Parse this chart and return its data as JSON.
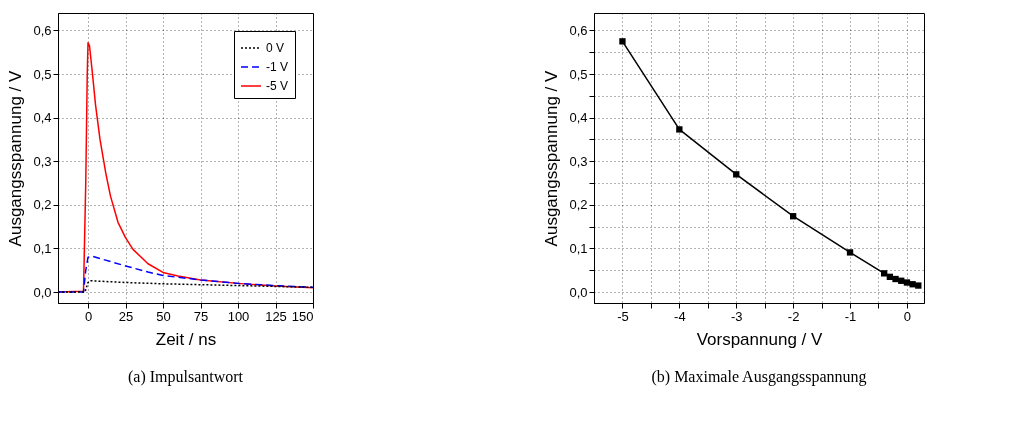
{
  "chart_data": [
    {
      "type": "line",
      "xlabel": "Zeit / ns",
      "ylabel": "Ausgangsspannung / V",
      "annotations": [
        "(a)  Impulsantwort"
      ],
      "xlim": [
        -20,
        150
      ],
      "ylim": [
        -0.025,
        0.64
      ],
      "xticks": [
        0,
        25,
        50,
        75,
        100,
        125,
        150
      ],
      "yticks": [
        {
          "value": 0,
          "label": "0,0"
        },
        {
          "value": 0.1,
          "label": "0,1"
        },
        {
          "value": 0.2,
          "label": "0,2"
        },
        {
          "value": 0.3,
          "label": "0,3"
        },
        {
          "value": 0.4,
          "label": "0,4"
        },
        {
          "value": 0.5,
          "label": "0,5"
        },
        {
          "value": 0.6,
          "label": "0,6"
        }
      ],
      "grid": true,
      "legend": "top right",
      "series": [
        {
          "name": "0 V",
          "color": "#000000",
          "line_style": "dotted",
          "x": [
            -20,
            -2,
            0,
            2,
            25,
            50,
            100,
            150
          ],
          "values": [
            0,
            0,
            0.022,
            0.026,
            0.022,
            0.019,
            0.015,
            0.011
          ]
        },
        {
          "name": "-1 V",
          "color": "#0000ff",
          "line_style": "dashed",
          "x": [
            -20,
            -3,
            -1.5,
            0,
            3,
            10,
            25,
            40,
            50,
            75,
            100,
            125,
            150
          ],
          "values": [
            0,
            0,
            0.05,
            0.08,
            0.082,
            0.075,
            0.06,
            0.046,
            0.038,
            0.028,
            0.02,
            0.015,
            0.011
          ]
        },
        {
          "name": "-5 V",
          "color": "#ff0000",
          "line_style": "solid",
          "x": [
            -20,
            -3,
            -1.5,
            -0.5,
            0,
            1,
            3,
            5,
            8,
            12,
            15,
            20,
            25,
            30,
            40,
            50,
            60,
            75,
            100,
            125,
            150
          ],
          "values": [
            0,
            0.002,
            0.25,
            0.5,
            0.572,
            0.565,
            0.5,
            0.43,
            0.35,
            0.27,
            0.22,
            0.16,
            0.125,
            0.098,
            0.065,
            0.045,
            0.037,
            0.028,
            0.02,
            0.014,
            0.01
          ]
        }
      ]
    },
    {
      "type": "line",
      "xlabel": "Vorspannung / V",
      "ylabel": "Ausgangsspannung / V",
      "annotations": [
        "(b)  Maximale Ausgangsspannung"
      ],
      "xlim": [
        -5.5,
        0.3
      ],
      "ylim": [
        -0.025,
        0.64
      ],
      "xticks": [
        -5,
        {
          "value": -4.5,
          "label": null
        },
        -4,
        {
          "value": -3.5,
          "label": null
        },
        -3,
        {
          "value": -2.5,
          "label": null
        },
        -2,
        {
          "value": -1.5,
          "label": null
        },
        -1,
        {
          "value": -0.5,
          "label": null
        },
        0
      ],
      "yticks": [
        {
          "value": 0,
          "label": "0,0"
        },
        {
          "value": 0.05,
          "label": null
        },
        {
          "value": 0.1,
          "label": "0,1"
        },
        {
          "value": 0.15,
          "label": null
        },
        {
          "value": 0.2,
          "label": "0,2"
        },
        {
          "value": 0.25,
          "label": null
        },
        {
          "value": 0.3,
          "label": "0,3"
        },
        {
          "value": 0.35,
          "label": null
        },
        {
          "value": 0.4,
          "label": "0,4"
        },
        {
          "value": 0.45,
          "label": null
        },
        {
          "value": 0.5,
          "label": "0,5"
        },
        {
          "value": 0.55,
          "label": null
        },
        {
          "value": 0.6,
          "label": "0,6"
        }
      ],
      "grid": true,
      "marker": "square",
      "series": [
        {
          "color": "#000000",
          "x": [
            -5,
            -4,
            -3,
            -2,
            -1,
            -0.4,
            -0.3,
            -0.2,
            -0.1,
            0,
            0.1,
            0.2
          ],
          "values": [
            0.575,
            0.373,
            0.27,
            0.174,
            0.091,
            0.043,
            0.035,
            0.03,
            0.026,
            0.022,
            0.018,
            0.015
          ]
        }
      ]
    }
  ]
}
